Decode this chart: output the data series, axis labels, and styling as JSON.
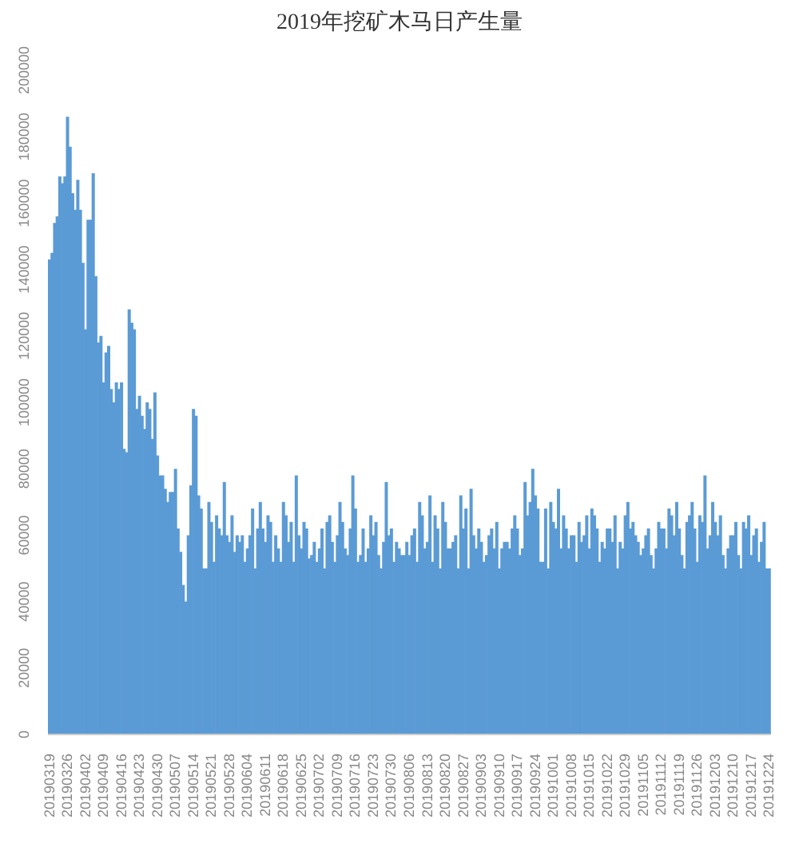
{
  "chart_data": {
    "type": "bar",
    "title": "2019年挖矿木马日产生量",
    "color": "#5b9bd5",
    "ylim": [
      0,
      200000
    ],
    "yticks": [
      0,
      20000,
      40000,
      60000,
      80000,
      100000,
      120000,
      140000,
      160000,
      180000,
      200000
    ],
    "grid": false,
    "categories": [
      "20190319",
      null,
      null,
      null,
      null,
      null,
      null,
      "20190326",
      null,
      null,
      null,
      null,
      null,
      null,
      "20190402",
      null,
      null,
      null,
      null,
      null,
      null,
      "20190409",
      null,
      null,
      null,
      null,
      null,
      null,
      "20190416",
      null,
      null,
      null,
      null,
      null,
      null,
      "20190423",
      null,
      null,
      null,
      null,
      null,
      null,
      "20190430",
      null,
      null,
      null,
      null,
      null,
      null,
      "20190507",
      null,
      null,
      null,
      null,
      null,
      null,
      "20190514",
      null,
      null,
      null,
      null,
      null,
      null,
      "20190521",
      null,
      null,
      null,
      null,
      null,
      null,
      "20190528",
      null,
      null,
      null,
      null,
      null,
      null,
      "20190604",
      null,
      null,
      null,
      null,
      null,
      null,
      "20190611",
      null,
      null,
      null,
      null,
      null,
      null,
      "20190618",
      null,
      null,
      null,
      null,
      null,
      null,
      "20190625",
      null,
      null,
      null,
      null,
      null,
      null,
      "20190702",
      null,
      null,
      null,
      null,
      null,
      null,
      "20190709",
      null,
      null,
      null,
      null,
      null,
      null,
      "20190716",
      null,
      null,
      null,
      null,
      null,
      null,
      "20190723",
      null,
      null,
      null,
      null,
      null,
      null,
      "20190730",
      null,
      null,
      null,
      null,
      null,
      null,
      "20190806",
      null,
      null,
      null,
      null,
      null,
      null,
      "20190813",
      null,
      null,
      null,
      null,
      null,
      null,
      "20190820",
      null,
      null,
      null,
      null,
      null,
      null,
      "20190827",
      null,
      null,
      null,
      null,
      null,
      null,
      "20190903",
      null,
      null,
      null,
      null,
      null,
      null,
      "20190910",
      null,
      null,
      null,
      null,
      null,
      null,
      "20190917",
      null,
      null,
      null,
      null,
      null,
      null,
      "20190924",
      null,
      null,
      null,
      null,
      null,
      null,
      "20191001",
      null,
      null,
      null,
      null,
      null,
      null,
      "20191008",
      null,
      null,
      null,
      null,
      null,
      null,
      "20191015",
      null,
      null,
      null,
      null,
      null,
      null,
      "20191022",
      null,
      null,
      null,
      null,
      null,
      null,
      "20191029",
      null,
      null,
      null,
      null,
      null,
      null,
      "20191105",
      null,
      null,
      null,
      null,
      null,
      null,
      "20191112",
      null,
      null,
      null,
      null,
      null,
      null,
      "20191119",
      null,
      null,
      null,
      null,
      null,
      null,
      "20191126",
      null,
      null,
      null,
      null,
      null,
      null,
      "20191203",
      null,
      null,
      null,
      null,
      null,
      null,
      "20191210",
      null,
      null,
      null,
      null,
      null,
      null,
      "20191217",
      null,
      null,
      null,
      null,
      null,
      null,
      "20191224"
    ],
    "values": [
      143000,
      145000,
      154000,
      156000,
      168000,
      166000,
      168000,
      186000,
      177000,
      163000,
      158000,
      167000,
      158000,
      142000,
      122000,
      155000,
      155000,
      169000,
      138000,
      118000,
      120000,
      106000,
      115000,
      117000,
      104000,
      100000,
      106000,
      104000,
      106000,
      86000,
      85000,
      128000,
      124000,
      122000,
      98000,
      102000,
      96000,
      92000,
      100000,
      98000,
      89000,
      103000,
      84000,
      78000,
      78000,
      74000,
      70000,
      73000,
      73000,
      80000,
      62000,
      55000,
      45000,
      40000,
      60000,
      75000,
      98000,
      96000,
      72000,
      68000,
      50000,
      50000,
      70000,
      64000,
      52000,
      66000,
      62000,
      60000,
      76000,
      60000,
      58000,
      66000,
      55000,
      60000,
      58000,
      60000,
      52000,
      56000,
      60000,
      68000,
      50000,
      62000,
      70000,
      62000,
      58000,
      66000,
      64000,
      52000,
      60000,
      56000,
      52000,
      70000,
      66000,
      58000,
      64000,
      52000,
      78000,
      60000,
      56000,
      64000,
      62000,
      53000,
      54000,
      58000,
      52000,
      56000,
      62000,
      50000,
      64000,
      66000,
      58000,
      52000,
      60000,
      70000,
      64000,
      56000,
      54000,
      62000,
      78000,
      68000,
      52000,
      54000,
      62000,
      52000,
      56000,
      66000,
      60000,
      64000,
      54000,
      50000,
      58000,
      76000,
      60000,
      62000,
      52000,
      58000,
      56000,
      54000,
      54000,
      58000,
      54000,
      60000,
      62000,
      52000,
      70000,
      66000,
      56000,
      58000,
      72000,
      52000,
      66000,
      62000,
      50000,
      70000,
      64000,
      56000,
      56000,
      58000,
      60000,
      50000,
      72000,
      62000,
      68000,
      50000,
      74000,
      60000,
      56000,
      62000,
      58000,
      52000,
      54000,
      60000,
      62000,
      56000,
      64000,
      50000,
      56000,
      58000,
      58000,
      56000,
      62000,
      66000,
      62000,
      54000,
      56000,
      76000,
      66000,
      70000,
      80000,
      72000,
      68000,
      52000,
      52000,
      68000,
      50000,
      70000,
      64000,
      62000,
      74000,
      56000,
      66000,
      62000,
      56000,
      60000,
      60000,
      52000,
      64000,
      58000,
      60000,
      66000,
      56000,
      68000,
      66000,
      62000,
      52000,
      58000,
      56000,
      62000,
      62000,
      58000,
      66000,
      50000,
      58000,
      56000,
      66000,
      70000,
      62000,
      64000,
      60000,
      58000,
      54000,
      56000,
      60000,
      62000,
      54000,
      50000,
      56000,
      64000,
      62000,
      62000,
      56000,
      68000,
      66000,
      60000,
      70000,
      62000,
      54000,
      50000,
      64000,
      66000,
      70000,
      62000,
      52000,
      66000,
      64000,
      78000,
      56000,
      60000,
      70000,
      64000,
      60000,
      66000,
      54000,
      50000,
      56000,
      60000,
      60000,
      64000,
      54000,
      50000,
      64000,
      62000,
      66000,
      54000,
      60000,
      62000,
      52000,
      58000,
      64000,
      50000,
      50000
    ]
  }
}
